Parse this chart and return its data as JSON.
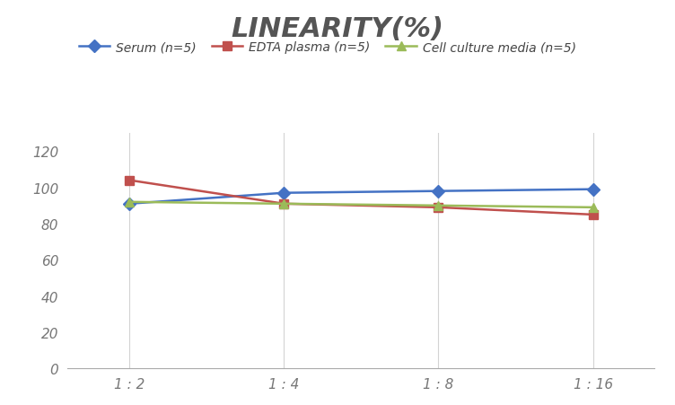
{
  "title": "LINEARITY(%)",
  "title_fontsize": 22,
  "title_fontstyle": "italic",
  "title_fontweight": "bold",
  "title_color": "#555555",
  "x_labels": [
    "1 : 2",
    "1 : 4",
    "1 : 8",
    "1 : 16"
  ],
  "x_positions": [
    0,
    1,
    2,
    3
  ],
  "series": [
    {
      "label": "Serum (n=5)",
      "values": [
        91,
        97,
        98,
        99
      ],
      "color": "#4472C4",
      "marker": "D",
      "markersize": 7,
      "linewidth": 1.8
    },
    {
      "label": "EDTA plasma (n=5)",
      "values": [
        104,
        91,
        89,
        85
      ],
      "color": "#C0504D",
      "marker": "s",
      "markersize": 7,
      "linewidth": 1.8
    },
    {
      "label": "Cell culture media (n=5)",
      "values": [
        92,
        91,
        90,
        89
      ],
      "color": "#9BBB59",
      "marker": "^",
      "markersize": 7,
      "linewidth": 1.8
    }
  ],
  "ylim": [
    0,
    130
  ],
  "yticks": [
    0,
    20,
    40,
    60,
    80,
    100,
    120
  ],
  "background_color": "#ffffff",
  "grid_color": "#d3d3d3",
  "legend_fontsize": 10,
  "axis_tick_fontsize": 11,
  "tick_color": "#777777",
  "legend_fontstyle": "italic"
}
